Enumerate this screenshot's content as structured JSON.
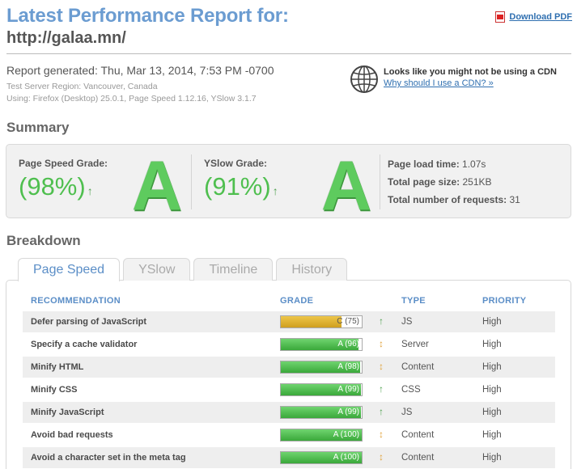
{
  "header": {
    "title": "Latest Performance Report for:",
    "url": "http://galaa.mn/",
    "download_label": "Download PDF"
  },
  "report": {
    "generated": "Report generated: Thu, Mar 13, 2014, 7:53 PM -0700",
    "server_region": "Test Server Region: Vancouver, Canada",
    "using": "Using: Firefox (Desktop) 25.0.1, Page Speed 1.12.16, YSlow 3.1.7"
  },
  "cdn": {
    "title": "Looks like you might not be using a CDN",
    "link": "Why should I use a CDN? »"
  },
  "summary": {
    "heading": "Summary",
    "pagespeed": {
      "label": "Page Speed Grade:",
      "percent": "(98%)",
      "trend": "↑",
      "letter": "A"
    },
    "yslow": {
      "label": "YSlow Grade:",
      "percent": "(91%)",
      "trend": "↑",
      "letter": "A"
    },
    "stats": [
      {
        "label": "Page load time:",
        "value": "1.07s"
      },
      {
        "label": "Total page size:",
        "value": "251KB"
      },
      {
        "label": "Total number of requests:",
        "value": "31"
      }
    ]
  },
  "breakdown": {
    "heading": "Breakdown",
    "tabs": [
      "Page Speed",
      "YSlow",
      "Timeline",
      "History"
    ],
    "active_tab": "Page Speed",
    "columns": {
      "recommendation": "RECOMMENDATION",
      "grade": "GRADE",
      "type": "TYPE",
      "priority": "PRIORITY"
    },
    "rows": [
      {
        "recommendation": "Defer parsing of JavaScript",
        "grade_label": "C (75)",
        "score": 75,
        "color": "#d9ad2e",
        "trend": "↑",
        "trend_kind": "up",
        "type": "JS",
        "priority": "High"
      },
      {
        "recommendation": "Specify a cache validator",
        "grade_label": "A (96)",
        "score": 96,
        "color": "#4fbf4f",
        "trend": "↕",
        "trend_kind": "updown",
        "type": "Server",
        "priority": "High"
      },
      {
        "recommendation": "Minify HTML",
        "grade_label": "A (98)",
        "score": 98,
        "color": "#4fbf4f",
        "trend": "↕",
        "trend_kind": "updown",
        "type": "Content",
        "priority": "High"
      },
      {
        "recommendation": "Minify CSS",
        "grade_label": "A (99)",
        "score": 99,
        "color": "#4fbf4f",
        "trend": "↑",
        "trend_kind": "up",
        "type": "CSS",
        "priority": "High"
      },
      {
        "recommendation": "Minify JavaScript",
        "grade_label": "A (99)",
        "score": 99,
        "color": "#4fbf4f",
        "trend": "↑",
        "trend_kind": "up",
        "type": "JS",
        "priority": "High"
      },
      {
        "recommendation": "Avoid bad requests",
        "grade_label": "A (100)",
        "score": 100,
        "color": "#4fbf4f",
        "trend": "↕",
        "trend_kind": "updown",
        "type": "Content",
        "priority": "High"
      },
      {
        "recommendation": "Avoid a character set in the meta tag",
        "grade_label": "A (100)",
        "score": 100,
        "color": "#4fbf4f",
        "trend": "↕",
        "trend_kind": "updown",
        "type": "Content",
        "priority": "High"
      }
    ]
  }
}
